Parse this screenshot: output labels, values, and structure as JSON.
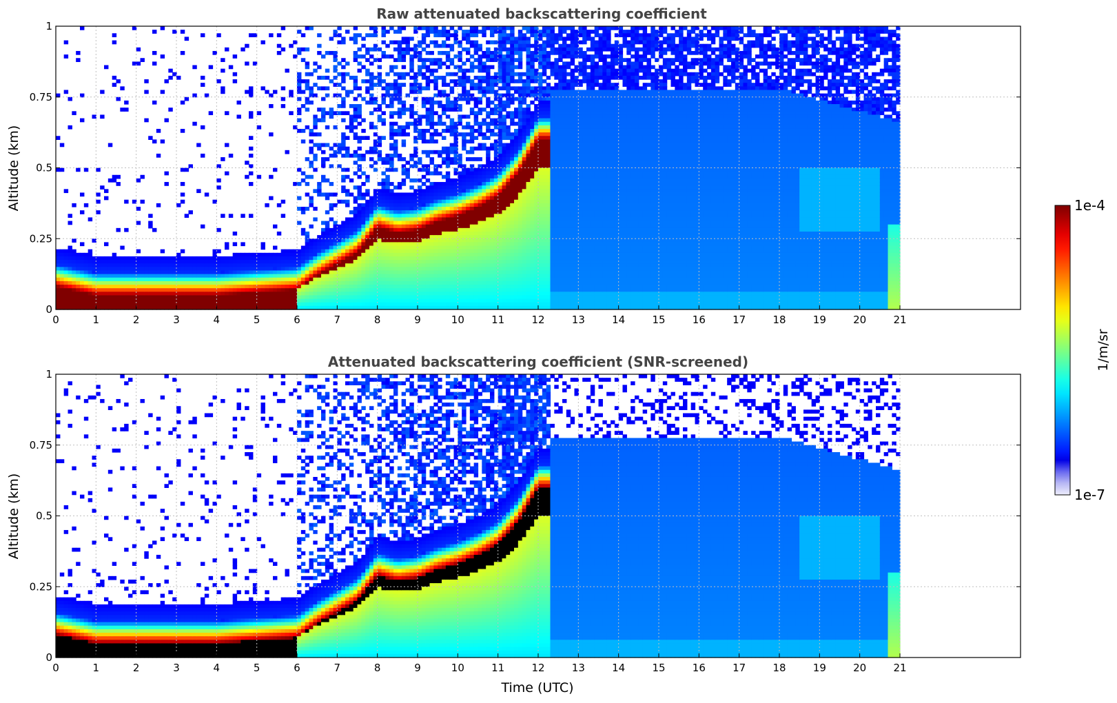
{
  "chart_data": [
    {
      "type": "heatmap",
      "title": "Raw attenuated backscattering coefficient",
      "xlabel": "",
      "ylabel": "Altitude (km)",
      "xlim": [
        0,
        24
      ],
      "ylim": [
        0,
        1
      ],
      "x_ticks": [
        "0",
        "1",
        "2",
        "3",
        "4",
        "5",
        "6",
        "7",
        "8",
        "9",
        "10",
        "11",
        "12",
        "13",
        "14",
        "15",
        "16",
        "17",
        "18",
        "19",
        "20",
        "21"
      ],
      "y_ticks": [
        "0",
        "0.25",
        "0.5",
        "0.75",
        "1"
      ],
      "grid": true,
      "data_extent_hours": [
        0,
        21
      ],
      "colorscale": "log",
      "boundary_layer_top_km": [
        {
          "t": 0,
          "z": 0.1
        },
        {
          "t": 1,
          "z": 0.07
        },
        {
          "t": 2,
          "z": 0.07
        },
        {
          "t": 3,
          "z": 0.07
        },
        {
          "t": 4,
          "z": 0.07
        },
        {
          "t": 5,
          "z": 0.08
        },
        {
          "t": 6,
          "z": 0.09
        },
        {
          "t": 6.5,
          "z": 0.14
        },
        {
          "t": 7,
          "z": 0.18
        },
        {
          "t": 7.5,
          "z": 0.22
        },
        {
          "t": 8,
          "z": 0.31
        },
        {
          "t": 8.5,
          "z": 0.29
        },
        {
          "t": 9,
          "z": 0.3
        },
        {
          "t": 9.5,
          "z": 0.33
        },
        {
          "t": 10,
          "z": 0.35
        },
        {
          "t": 10.5,
          "z": 0.38
        },
        {
          "t": 11,
          "z": 0.42
        },
        {
          "t": 11.5,
          "z": 0.5
        },
        {
          "t": 12,
          "z": 0.62
        }
      ]
    },
    {
      "type": "heatmap",
      "title": "Attenuated backscattering coefficient (SNR-screened)",
      "xlabel": "Time (UTC)",
      "ylabel": "Altitude (km)",
      "xlim": [
        0,
        24
      ],
      "ylim": [
        0,
        1
      ],
      "x_ticks": [
        "0",
        "1",
        "2",
        "3",
        "4",
        "5",
        "6",
        "7",
        "8",
        "9",
        "10",
        "11",
        "12",
        "13",
        "14",
        "15",
        "16",
        "17",
        "18",
        "19",
        "20",
        "21"
      ],
      "y_ticks": [
        "0",
        "0.25",
        "0.5",
        "0.75",
        "1"
      ],
      "grid": true,
      "data_extent_hours": [
        0,
        21
      ],
      "colorscale": "log",
      "saturated_color": "#000000"
    }
  ],
  "colorbar": {
    "label": "1/m/sr",
    "max_label": "1e-4",
    "min_label": "1e-7",
    "min": 1e-07,
    "max": 0.0001,
    "colormap": "jet"
  }
}
